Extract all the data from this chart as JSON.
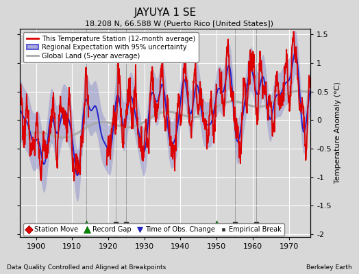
{
  "title": "JAYUYA 1 SE",
  "subtitle": "18.208 N, 66.588 W (Puerto Rico [United States])",
  "footer_left": "Data Quality Controlled and Aligned at Breakpoints",
  "footer_right": "Berkeley Earth",
  "ylabel": "Temperature Anomaly (°C)",
  "xlim": [
    1895.5,
    1976
  ],
  "ylim": [
    -2.05,
    1.6
  ],
  "yticks": [
    -2,
    -1.5,
    -1,
    -0.5,
    0,
    0.5,
    1,
    1.5
  ],
  "xticks": [
    1900,
    1910,
    1920,
    1930,
    1940,
    1950,
    1960,
    1970
  ],
  "background_color": "#d8d8d8",
  "plot_bg_color": "#d8d8d8",
  "grid_color": "#ffffff",
  "station_line_color": "#dd0000",
  "regional_line_color": "#2222cc",
  "regional_fill_color": "#8888cc",
  "global_line_color": "#aaaaaa",
  "legend_labels": [
    "This Temperature Station (12-month average)",
    "Regional Expectation with 95% uncertainty",
    "Global Land (5-year average)"
  ],
  "markers": {
    "record_gap": {
      "years": [
        1914,
        1950
      ],
      "color": "#008800",
      "marker": "^",
      "label": "Record Gap"
    },
    "empirical_break": {
      "years": [
        1922,
        1925,
        1955,
        1961
      ],
      "color": "#333333",
      "marker": "s",
      "label": "Empirical Break"
    }
  },
  "vlines": [
    1914,
    1922,
    1925,
    1950,
    1955,
    1961
  ]
}
